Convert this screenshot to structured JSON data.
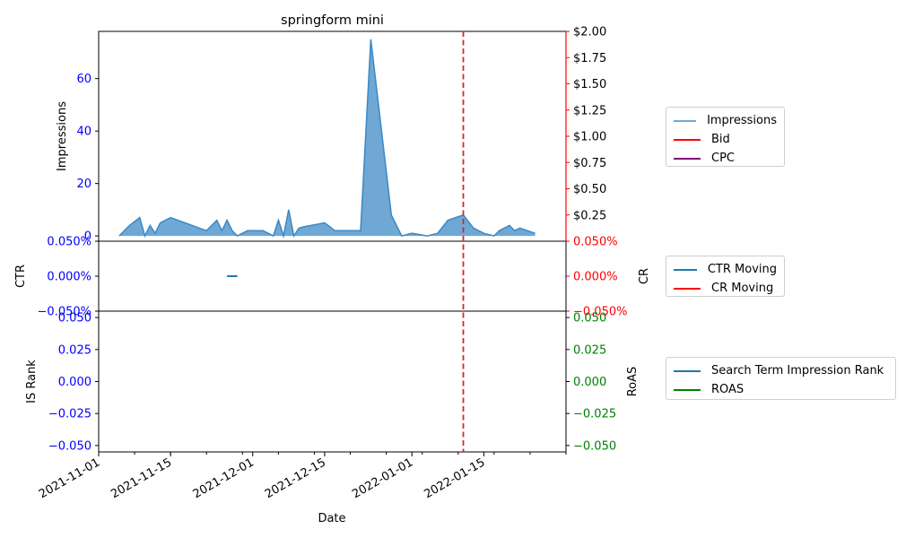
{
  "chart_data": [
    {
      "type": "area",
      "title": "springform mini",
      "ylabel": "Impressions",
      "y2label": "",
      "xlim": [
        "2021-11-01",
        "2022-01-31"
      ],
      "ylim": [
        -2,
        78
      ],
      "yticks": [
        0,
        20,
        40,
        60
      ],
      "y2lim": [
        0.0,
        2.0
      ],
      "y2ticks": [
        0.25,
        0.5,
        0.75,
        1.0,
        1.25,
        1.5,
        1.75,
        2.0
      ],
      "y2ticklabels": [
        "$0.25",
        "$0.50",
        "$0.75",
        "$1.00",
        "$1.25",
        "$1.50",
        "$1.75",
        "$2.00"
      ],
      "series": [
        {
          "name": "Impressions",
          "color": "#6fa8d5",
          "x": [
            "2021-11-05",
            "2021-11-07",
            "2021-11-09",
            "2021-11-10",
            "2021-11-11",
            "2021-11-12",
            "2021-11-13",
            "2021-11-15",
            "2021-11-22",
            "2021-11-24",
            "2021-11-25",
            "2021-11-26",
            "2021-11-27",
            "2021-11-28",
            "2021-11-30",
            "2021-12-03",
            "2021-12-05",
            "2021-12-06",
            "2021-12-07",
            "2021-12-08",
            "2021-12-09",
            "2021-12-10",
            "2021-12-11",
            "2021-12-15",
            "2021-12-17",
            "2021-12-22",
            "2021-12-24",
            "2021-12-28",
            "2021-12-30",
            "2022-01-01",
            "2022-01-04",
            "2022-01-06",
            "2022-01-08",
            "2022-01-11",
            "2022-01-13",
            "2022-01-15",
            "2022-01-17",
            "2022-01-18",
            "2022-01-20",
            "2022-01-21",
            "2022-01-22",
            "2022-01-25"
          ],
          "values": [
            0,
            4,
            7,
            0,
            4,
            1,
            5,
            7,
            2,
            6,
            2,
            6,
            2,
            0,
            2,
            2,
            0,
            6,
            0,
            10,
            0,
            3,
            3.5,
            5,
            2,
            2,
            75,
            8,
            0,
            1,
            0,
            1,
            6,
            8,
            3,
            1,
            0,
            2,
            4,
            2,
            3,
            1
          ]
        },
        {
          "name": "Bid",
          "color": "#ff0000",
          "values": []
        },
        {
          "name": "CPC",
          "color": "#800080",
          "values": []
        }
      ],
      "annotations": [
        {
          "type": "vline",
          "x": "2022-01-11",
          "color": "#d62728",
          "style": "dashed"
        }
      ]
    },
    {
      "type": "line",
      "ylabel": "CTR",
      "y2label": "CR",
      "ylim": [
        -0.0005,
        0.0005
      ],
      "yticks": [
        -0.0005,
        0.0,
        0.0005
      ],
      "yticklabels": [
        "−0.050%",
        "0.000%",
        "0.050%"
      ],
      "series": [
        {
          "name": "CTR Moving",
          "color": "#1f77b4",
          "x": [
            "2021-11-26",
            "2021-11-28"
          ],
          "values": [
            0,
            0
          ]
        },
        {
          "name": "CR Moving",
          "color": "#ff0000",
          "values": []
        }
      ]
    },
    {
      "type": "line",
      "ylabel": "IS Rank",
      "y2label": "RoAS",
      "xlabel": "Date",
      "ylim": [
        -0.055,
        0.055
      ],
      "yticks": [
        -0.05,
        -0.025,
        0.0,
        0.025,
        0.05
      ],
      "yticklabels": [
        "−0.050",
        "−0.025",
        "0.000",
        "0.025",
        "0.050"
      ],
      "xticks": [
        "2021-11-01",
        "2021-11-15",
        "2021-12-01",
        "2021-12-15",
        "2022-01-01",
        "2022-01-15"
      ],
      "series": [
        {
          "name": "Search Term Impression Rank",
          "color": "#1f77b4",
          "values": []
        },
        {
          "name": "ROAS",
          "color": "#008000",
          "values": []
        }
      ]
    }
  ]
}
